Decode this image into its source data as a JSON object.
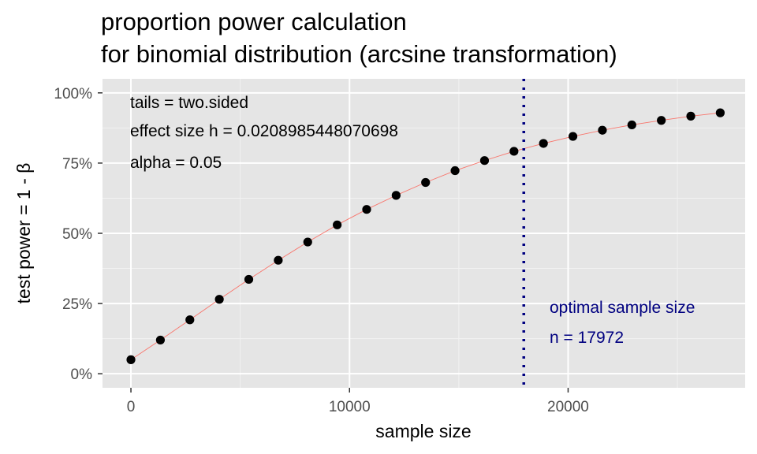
{
  "chart_data": {
    "type": "scatter",
    "title_lines": [
      "proportion power calculation",
      "for binomial distribution (arcsine transformation)"
    ],
    "xlabel": "sample size",
    "ylabel": "test power = 1 - β",
    "xlim": [
      -1300,
      28100
    ],
    "ylim": [
      -0.05,
      1.05
    ],
    "x_ticks": [
      0,
      10000,
      20000
    ],
    "x_tick_labels": [
      "0",
      "10000",
      "20000"
    ],
    "y_ticks": [
      0,
      0.25,
      0.5,
      0.75,
      1.0
    ],
    "y_tick_labels": [
      "0%",
      "25%",
      "50%",
      "75%",
      "100%"
    ],
    "grid": true,
    "series": [
      {
        "marker_color": "#000000",
        "line_color": "#f8766d",
        "x": [
          0,
          1348,
          2696,
          4044,
          5392,
          6740,
          8088,
          9436,
          10784,
          12132,
          13480,
          14828,
          16176,
          17524,
          18872,
          20220,
          21568,
          22916,
          24264,
          25612,
          26960
        ],
        "y": [
          0.05,
          0.12,
          0.192,
          0.265,
          0.336,
          0.404,
          0.469,
          0.53,
          0.585,
          0.635,
          0.681,
          0.723,
          0.759,
          0.792,
          0.82,
          0.845,
          0.867,
          0.886,
          0.902,
          0.917,
          0.929
        ]
      }
    ],
    "annotations": [
      "tails = two.sided",
      "effect size h = 0.0208985448070698",
      "alpha = 0.05"
    ],
    "optimal": {
      "x": 17972,
      "line_color": "#000080",
      "label_lines": [
        "optimal sample size",
        "n = 17972"
      ]
    }
  }
}
